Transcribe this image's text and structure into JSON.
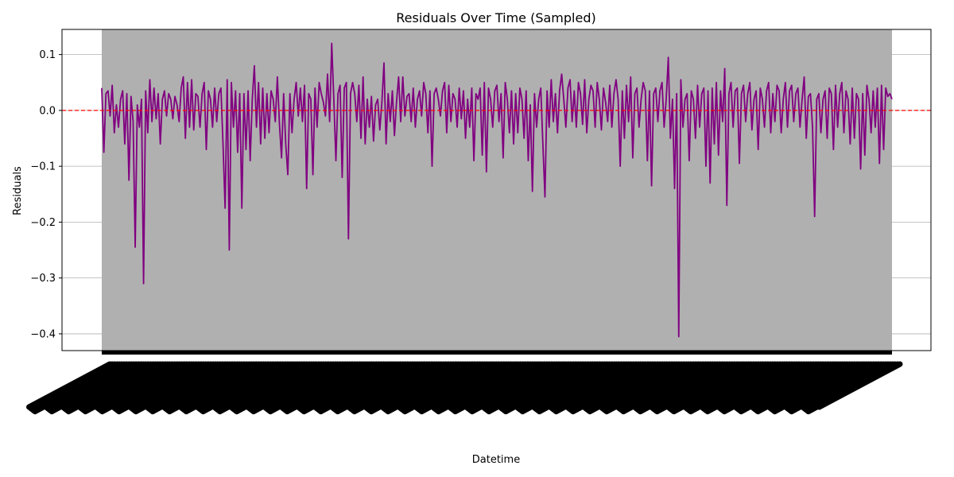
{
  "chart_data": {
    "type": "line",
    "title": "Residuals Over Time (Sampled)",
    "xlabel": "Datetime",
    "ylabel": "Residuals",
    "ylim": [
      -0.43,
      0.145
    ],
    "yticks": [
      0.1,
      0.0,
      -0.1,
      -0.2,
      -0.3,
      -0.4
    ],
    "ytick_labels": [
      "0.1",
      "0.0",
      "−0.1",
      "−0.2",
      "−0.3",
      "−0.4"
    ],
    "grid": "y-only",
    "reference_line": {
      "y": 0.0,
      "color": "#ff0000",
      "style": "dashed"
    },
    "series": [
      {
        "color": "#800080",
        "values": [
          0.04,
          -0.075,
          0.03,
          0.035,
          -0.01,
          0.045,
          -0.04,
          0.01,
          -0.03,
          0.02,
          0.035,
          -0.06,
          0.03,
          -0.125,
          0.025,
          -0.02,
          -0.245,
          0.01,
          -0.03,
          0.02,
          -0.31,
          0.035,
          -0.04,
          0.055,
          -0.02,
          0.04,
          -0.015,
          0.03,
          -0.06,
          0.02,
          0.035,
          -0.01,
          0.03,
          0.02,
          -0.015,
          0.025,
          0.01,
          -0.02,
          0.04,
          0.06,
          -0.05,
          0.05,
          -0.03,
          0.055,
          -0.035,
          0.03,
          0.025,
          -0.03,
          0.03,
          0.05,
          -0.07,
          0.035,
          0.02,
          -0.03,
          0.04,
          -0.02,
          0.03,
          0.04,
          -0.06,
          -0.175,
          0.055,
          -0.25,
          0.05,
          -0.03,
          0.035,
          -0.075,
          0.03,
          -0.175,
          0.03,
          -0.07,
          0.035,
          -0.09,
          0.02,
          0.08,
          -0.03,
          0.05,
          -0.06,
          0.04,
          -0.05,
          0.03,
          -0.04,
          0.035,
          0.02,
          -0.02,
          0.06,
          -0.025,
          -0.085,
          0.03,
          -0.06,
          -0.115,
          0.03,
          -0.04,
          0.02,
          0.05,
          -0.01,
          0.04,
          -0.02,
          0.045,
          -0.14,
          0.03,
          0.02,
          -0.115,
          0.04,
          -0.03,
          0.05,
          0.03,
          0.015,
          -0.01,
          0.065,
          -0.02,
          0.12,
          0.02,
          -0.09,
          0.03,
          0.045,
          -0.12,
          0.04,
          0.05,
          -0.23,
          0.03,
          0.05,
          0.03,
          -0.02,
          0.045,
          -0.05,
          0.06,
          -0.06,
          0.02,
          -0.03,
          0.025,
          -0.055,
          0.01,
          0.02,
          -0.035,
          0.015,
          0.085,
          -0.06,
          0.03,
          -0.02,
          0.035,
          -0.045,
          0.015,
          0.06,
          -0.02,
          0.06,
          -0.01,
          0.025,
          0.03,
          -0.02,
          0.04,
          -0.03,
          0.02,
          0.035,
          -0.01,
          0.05,
          0.03,
          -0.04,
          0.035,
          -0.1,
          0.03,
          0.04,
          0.02,
          -0.01,
          0.035,
          0.05,
          -0.04,
          0.045,
          -0.02,
          0.03,
          0.02,
          -0.03,
          0.04,
          -0.015,
          0.035,
          -0.05,
          0.02,
          -0.03,
          0.04,
          -0.09,
          0.03,
          0.02,
          0.04,
          -0.08,
          0.05,
          -0.11,
          0.04,
          0.02,
          -0.03,
          0.035,
          0.045,
          -0.02,
          0.03,
          -0.085,
          0.05,
          0.02,
          -0.04,
          0.035,
          -0.06,
          0.03,
          -0.04,
          0.04,
          0.02,
          -0.05,
          0.035,
          -0.09,
          0.01,
          -0.145,
          0.03,
          -0.03,
          0.02,
          0.04,
          -0.06,
          -0.155,
          0.035,
          -0.03,
          0.055,
          -0.02,
          0.03,
          -0.04,
          0.035,
          0.065,
          0.02,
          -0.03,
          0.04,
          0.055,
          -0.02,
          0.035,
          -0.03,
          0.05,
          0.03,
          -0.025,
          0.055,
          -0.04,
          0.02,
          0.045,
          0.035,
          -0.03,
          0.05,
          0.02,
          -0.035,
          0.04,
          0.015,
          -0.02,
          0.045,
          -0.03,
          0.03,
          0.055,
          0.02,
          -0.1,
          0.035,
          -0.05,
          0.045,
          -0.02,
          0.06,
          -0.085,
          0.03,
          0.04,
          -0.03,
          0.02,
          0.05,
          0.035,
          -0.09,
          0.035,
          -0.135,
          0.03,
          0.04,
          -0.02,
          0.035,
          0.05,
          -0.03,
          0.02,
          0.095,
          -0.05,
          0.02,
          -0.14,
          0.03,
          -0.405,
          0.055,
          -0.03,
          0.02,
          0.03,
          -0.09,
          0.035,
          0.02,
          -0.05,
          0.045,
          -0.03,
          0.03,
          0.04,
          -0.1,
          0.035,
          -0.13,
          0.04,
          -0.06,
          0.05,
          -0.08,
          0.035,
          -0.02,
          0.075,
          -0.17,
          0.03,
          0.05,
          -0.03,
          0.035,
          0.04,
          -0.095,
          0.03,
          0.045,
          -0.02,
          0.03,
          0.05,
          -0.035,
          0.02,
          0.035,
          -0.07,
          0.04,
          0.02,
          -0.03,
          0.035,
          0.05,
          -0.04,
          0.03,
          -0.02,
          0.045,
          0.035,
          -0.04,
          0.02,
          0.05,
          -0.03,
          0.035,
          0.045,
          -0.02,
          0.03,
          0.04,
          -0.03,
          0.02,
          0.06,
          -0.05,
          0.025,
          0.03,
          -0.03,
          -0.19,
          0.02,
          0.03,
          -0.04,
          0.02,
          0.035,
          -0.05,
          0.04,
          0.03,
          -0.07,
          0.045,
          -0.03,
          0.03,
          0.05,
          -0.04,
          0.035,
          0.02,
          -0.06,
          0.04,
          -0.05,
          0.03,
          0.02,
          -0.105,
          0.03,
          -0.08,
          0.045,
          0.02,
          -0.04,
          0.035,
          -0.03,
          0.04,
          -0.095,
          0.045,
          -0.07,
          0.04,
          0.025,
          0.03,
          0.02
        ]
      }
    ],
    "x_tick_count": 330,
    "x_tick_label_color": "#000000",
    "background": "#ffffff",
    "data_band_color": "#b0b0b0",
    "grid_color": "#b0b0b0"
  }
}
